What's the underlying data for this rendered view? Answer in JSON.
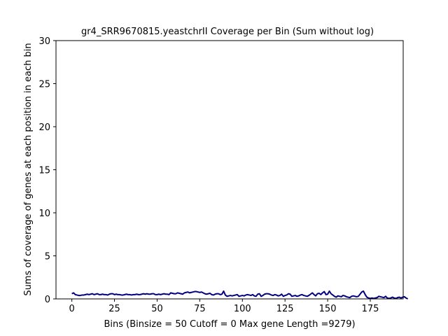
{
  "chart_data": {
    "type": "line",
    "title": "gr4_SRR9670815.yeastchrII Coverage per Bin (Sum without log)",
    "xlabel": "Bins  (Binsize = 50 Cutoff = 0 Max gene Length =9279)",
    "ylabel": "Sums of coverage of genes at each position in each bin",
    "xlim": [
      -9.3,
      194.3
    ],
    "ylim": [
      0,
      30
    ],
    "x_ticks": [
      0,
      25,
      50,
      75,
      100,
      125,
      150,
      175
    ],
    "y_ticks": [
      0,
      5,
      10,
      15,
      20,
      25,
      30
    ],
    "grid": false,
    "line_color": "#000080",
    "series": [
      {
        "values": [
          0.6,
          0.7,
          0.5,
          0.45,
          0.4,
          0.4,
          0.45,
          0.45,
          0.5,
          0.55,
          0.5,
          0.55,
          0.6,
          0.5,
          0.55,
          0.6,
          0.5,
          0.5,
          0.55,
          0.5,
          0.5,
          0.45,
          0.55,
          0.6,
          0.6,
          0.5,
          0.55,
          0.5,
          0.5,
          0.45,
          0.45,
          0.5,
          0.55,
          0.5,
          0.5,
          0.45,
          0.5,
          0.5,
          0.55,
          0.5,
          0.5,
          0.55,
          0.6,
          0.55,
          0.6,
          0.55,
          0.55,
          0.6,
          0.6,
          0.5,
          0.5,
          0.55,
          0.5,
          0.55,
          0.6,
          0.55,
          0.55,
          0.5,
          0.7,
          0.65,
          0.6,
          0.6,
          0.7,
          0.65,
          0.6,
          0.55,
          0.7,
          0.75,
          0.8,
          0.7,
          0.75,
          0.8,
          0.85,
          0.85,
          0.8,
          0.75,
          0.8,
          0.7,
          0.6,
          0.55,
          0.6,
          0.65,
          0.5,
          0.45,
          0.55,
          0.6,
          0.6,
          0.5,
          0.55,
          0.9,
          0.45,
          0.3,
          0.35,
          0.4,
          0.35,
          0.4,
          0.45,
          0.5,
          0.3,
          0.35,
          0.4,
          0.35,
          0.45,
          0.5,
          0.45,
          0.4,
          0.5,
          0.35,
          0.3,
          0.55,
          0.6,
          0.3,
          0.4,
          0.55,
          0.6,
          0.6,
          0.55,
          0.45,
          0.4,
          0.5,
          0.45,
          0.35,
          0.4,
          0.55,
          0.3,
          0.4,
          0.45,
          0.6,
          0.55,
          0.3,
          0.35,
          0.4,
          0.3,
          0.35,
          0.45,
          0.5,
          0.4,
          0.35,
          0.3,
          0.4,
          0.55,
          0.7,
          0.5,
          0.35,
          0.6,
          0.65,
          0.5,
          0.7,
          0.85,
          0.5,
          0.55,
          0.9,
          0.6,
          0.45,
          0.3,
          0.2,
          0.35,
          0.3,
          0.25,
          0.4,
          0.35,
          0.25,
          0.2,
          0.15,
          0.3,
          0.35,
          0.3,
          0.25,
          0.3,
          0.55,
          0.8,
          0.9,
          0.5,
          0.2,
          0.1,
          0.05,
          0.1,
          0.05,
          0.1,
          0.15,
          0.3,
          0.25,
          0.2,
          0.15,
          0.3,
          0.1,
          0.05,
          0.1,
          0.2,
          0.1,
          0.05,
          0.15,
          0.2,
          0.1,
          0.2,
          0.25,
          0.1,
          0.0
        ]
      }
    ]
  }
}
